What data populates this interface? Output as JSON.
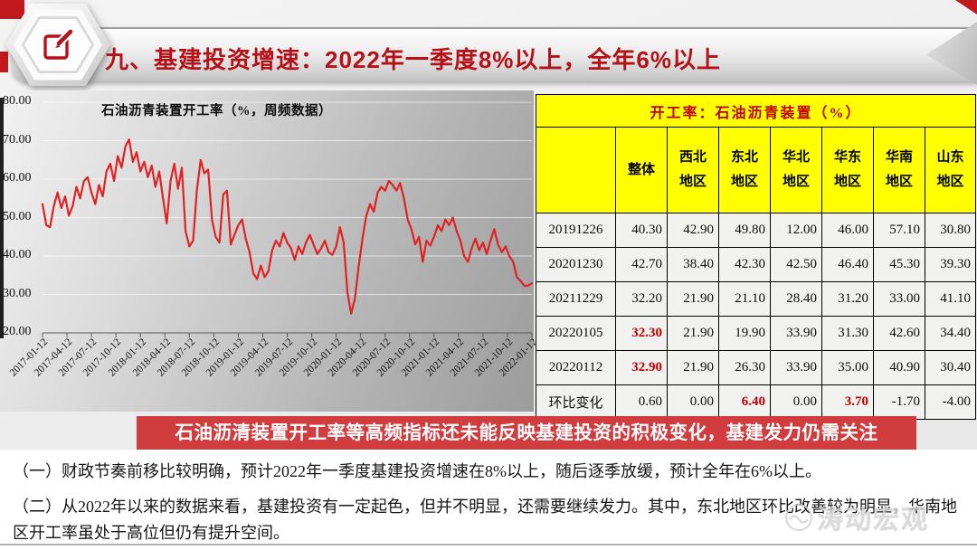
{
  "header": {
    "title": "九、基建投资增速：2022年一季度8%以上，全年6%以上"
  },
  "chart_data": [
    {
      "type": "line",
      "title": "石油沥青装置开工率（%，周频数据）",
      "ylim": [
        20,
        80
      ],
      "y_ticks": [
        "80.00",
        "70.00",
        "60.00",
        "50.00",
        "40.00",
        "30.00",
        "20.00"
      ],
      "x": [
        "2017-01-12",
        "2017-04-12",
        "2017-07-12",
        "2017-10-12",
        "2018-01-12",
        "2018-04-12",
        "2018-07-12",
        "2018-10-12",
        "2019-01-12",
        "2019-04-12",
        "2019-07-12",
        "2019-10-12",
        "2020-01-12",
        "2020-04-12",
        "2020-07-12",
        "2020-10-12",
        "2021-01-12",
        "2021-04-12",
        "2021-07-12",
        "2021-10-12",
        "2022-01-12"
      ],
      "grid": "horizontal",
      "legend": "none",
      "series": [
        {
          "name": "石油沥青装置开工率",
          "color": "#e02222",
          "values": [
            53.5,
            48.0,
            47.5,
            53.0,
            56.5,
            52.5,
            55.5,
            50.5,
            53.0,
            58.0,
            55.0,
            59.5,
            60.5,
            56.5,
            53.5,
            58.5,
            55.5,
            62.0,
            64.0,
            59.5,
            66.0,
            63.0,
            68.5,
            70.3,
            64.5,
            67.0,
            62.0,
            64.5,
            60.5,
            63.5,
            58.0,
            62.0,
            55.0,
            48.5,
            59.5,
            64.0,
            57.5,
            63.0,
            46.5,
            42.5,
            44.0,
            57.0,
            65.0,
            61.5,
            62.5,
            49.5,
            45.0,
            43.5,
            56.0,
            57.0,
            43.0,
            45.5,
            48.0,
            49.5,
            44.5,
            41.0,
            35.5,
            34.0,
            37.5,
            34.5,
            36.0,
            41.5,
            44.0,
            42.5,
            46.0,
            43.5,
            42.0,
            39.0,
            42.5,
            40.5,
            43.5,
            45.5,
            43.0,
            40.5,
            42.0,
            44.0,
            41.0,
            40.3,
            42.5,
            47.5,
            43.5,
            30.5,
            25.0,
            29.0,
            37.5,
            44.5,
            50.5,
            53.5,
            51.5,
            56.5,
            58.0,
            57.0,
            59.5,
            58.5,
            57.0,
            59.0,
            55.0,
            49.5,
            47.0,
            43.0,
            45.0,
            38.5,
            44.0,
            42.7,
            45.0,
            48.0,
            46.5,
            49.5,
            48.0,
            50.0,
            46.5,
            44.0,
            40.0,
            38.5,
            42.0,
            44.5,
            41.5,
            43.5,
            40.5,
            44.0,
            47.0,
            43.0,
            41.0,
            42.5,
            40.0,
            38.5,
            34.5,
            33.5,
            32.2,
            32.3,
            32.9
          ]
        }
      ]
    },
    {
      "type": "table",
      "title": "开工率：石油沥青装置（%）",
      "columns": [
        {
          "l1": "整体",
          "l2": ""
        },
        {
          "l1": "西北",
          "l2": "地区"
        },
        {
          "l1": "东北",
          "l2": "地区"
        },
        {
          "l1": "华北",
          "l2": "地区"
        },
        {
          "l1": "华东",
          "l2": "地区"
        },
        {
          "l1": "华南",
          "l2": "地区"
        },
        {
          "l1": "山东",
          "l2": "地区"
        }
      ],
      "rows": [
        {
          "label": "20191226",
          "values": [
            "40.30",
            "42.90",
            "49.80",
            "12.00",
            "46.00",
            "57.10",
            "30.80"
          ],
          "red": []
        },
        {
          "label": "20201230",
          "values": [
            "42.70",
            "38.40",
            "42.30",
            "42.50",
            "46.40",
            "45.30",
            "39.30"
          ],
          "red": []
        },
        {
          "label": "20211229",
          "values": [
            "32.20",
            "21.90",
            "21.10",
            "28.40",
            "31.20",
            "33.00",
            "41.10"
          ],
          "red": []
        },
        {
          "label": "20220105",
          "values": [
            "32.30",
            "21.90",
            "19.90",
            "33.90",
            "31.30",
            "42.60",
            "34.40"
          ],
          "red": [
            0
          ]
        },
        {
          "label": "20220112",
          "values": [
            "32.90",
            "21.90",
            "26.30",
            "33.90",
            "35.00",
            "40.90",
            "30.40"
          ],
          "red": [
            0
          ]
        },
        {
          "label": "环比变化",
          "values": [
            "0.60",
            "0.00",
            "6.40",
            "0.00",
            "3.70",
            "-1.70",
            "-4.00"
          ],
          "red": [
            2,
            4
          ]
        }
      ]
    }
  ],
  "banner": {
    "text": "石油沥清装置开工率等高频指标还未能反映基建投资的积极变化，基建发力仍需关注"
  },
  "notes": {
    "para1": "（一）财政节奏前移比较明确，预计2022年一季度基建投资增速在8%以上，随后逐季放缓，预计全年在6%以上。",
    "para2": "（二）从2022年以来的数据来看，基建投资有一定起色，但并不明显，还需要继续发力。其中，东北地区环比改善较为明显，华南地区开工率虽处于高位但仍有提升空间。"
  },
  "watermark": {
    "text": "涛动宏观"
  },
  "colors": {
    "title_red": "#b41118",
    "corner_red": "#c2191f",
    "banner_red": "#d13c3f",
    "table_yellow": "#ffff00",
    "line_red": "#e02222",
    "value_red": "#c00000"
  }
}
